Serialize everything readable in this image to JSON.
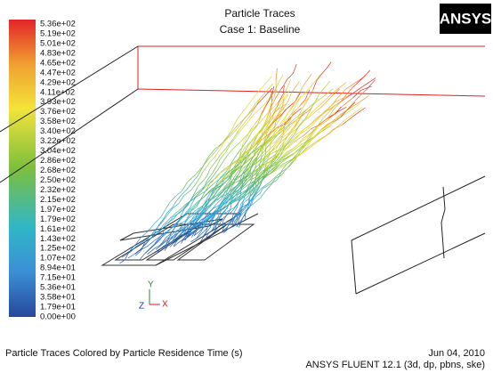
{
  "header": {
    "title": "Particle Traces",
    "subtitle": "Case 1: Baseline",
    "logo": "ANSYS"
  },
  "colorbar": {
    "labels": [
      "5.36e+02",
      "5.19e+02",
      "5.01e+02",
      "4.83e+02",
      "4.65e+02",
      "4.47e+02",
      "4.29e+02",
      "4.11e+02",
      "3.93e+02",
      "3.76e+02",
      "3.58e+02",
      "3.40e+02",
      "3.22e+02",
      "3.04e+02",
      "2.86e+02",
      "2.68e+02",
      "2.50e+02",
      "2.32e+02",
      "2.15e+02",
      "1.97e+02",
      "1.79e+02",
      "1.61e+02",
      "1.43e+02",
      "1.25e+02",
      "1.07e+02",
      "8.94e+01",
      "7.15e+01",
      "5.36e+01",
      "3.58e+01",
      "1.79e+01",
      "0.00e+00"
    ]
  },
  "axes": {
    "y": "Y",
    "z": "Z",
    "x": "X"
  },
  "footer": {
    "caption": "Particle Traces Colored by Particle Residence Time (s)",
    "date": "Jun 04, 2010",
    "version": "ANSYS FLUENT 12.1 (3d, dp, pbns, ske)"
  }
}
